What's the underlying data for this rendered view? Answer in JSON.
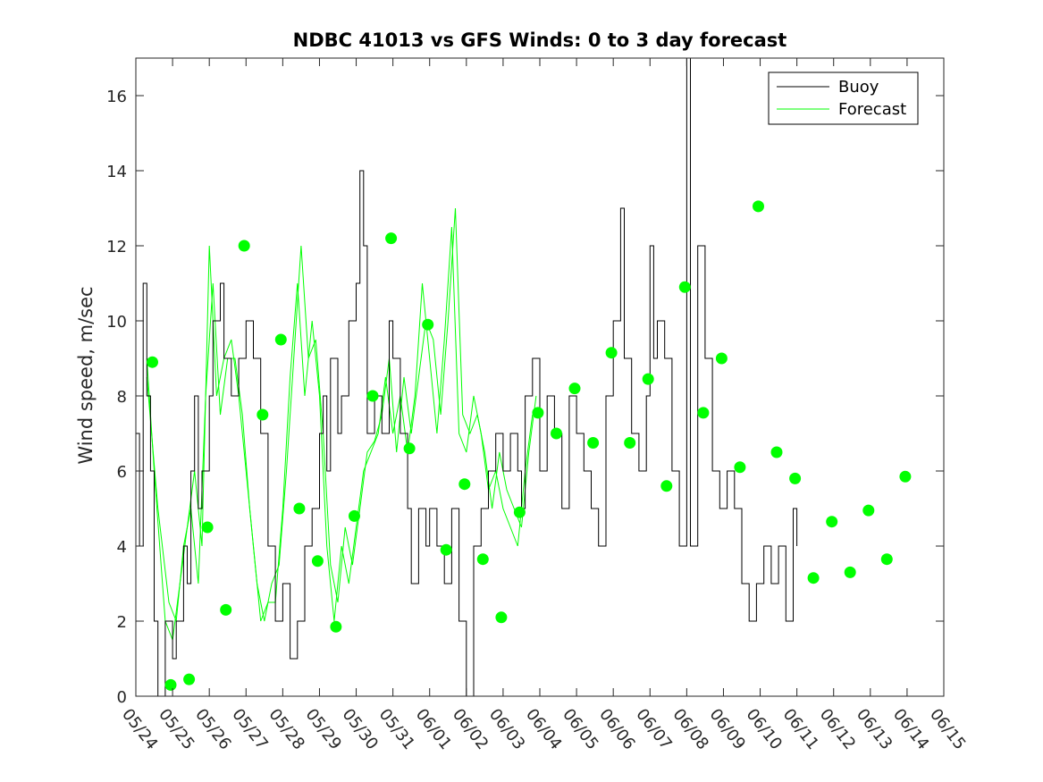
{
  "chart_data": {
    "type": "line",
    "title": "NDBC 41013 vs GFS Winds: 0 to 3 day forecast",
    "xlabel": "",
    "ylabel": "Wind speed, m/sec",
    "ylim": [
      0,
      17
    ],
    "yticks": [
      0,
      2,
      4,
      6,
      8,
      10,
      12,
      14,
      16
    ],
    "xlim": [
      0,
      22
    ],
    "x_tick_labels": [
      "05/24",
      "05/25",
      "05/26",
      "05/27",
      "05/28",
      "05/29",
      "05/30",
      "05/31",
      "06/01",
      "06/02",
      "06/03",
      "06/04",
      "06/05",
      "06/06",
      "06/07",
      "06/08",
      "06/09",
      "06/10",
      "06/11",
      "06/12",
      "06/13",
      "06/14",
      "06/15"
    ],
    "legend": {
      "location": "top-right",
      "entries": [
        "Buoy",
        "Forecast"
      ]
    },
    "colors": {
      "buoy": "#000000",
      "forecast": "#00ff00",
      "markers": "#00ff00"
    },
    "series": [
      {
        "name": "Buoy",
        "points": [
          [
            0,
            7
          ],
          [
            0.1,
            4
          ],
          [
            0.2,
            11
          ],
          [
            0.3,
            8
          ],
          [
            0.4,
            6
          ],
          [
            0.5,
            2
          ],
          [
            0.6,
            0
          ],
          [
            0.8,
            2
          ],
          [
            1.0,
            1
          ],
          [
            1.1,
            2
          ],
          [
            1.3,
            4
          ],
          [
            1.4,
            3
          ],
          [
            1.5,
            6
          ],
          [
            1.6,
            8
          ],
          [
            1.7,
            5
          ],
          [
            1.8,
            6
          ],
          [
            2.0,
            8
          ],
          [
            2.1,
            10
          ],
          [
            2.3,
            11
          ],
          [
            2.4,
            9
          ],
          [
            2.6,
            8
          ],
          [
            2.8,
            9
          ],
          [
            3.0,
            10
          ],
          [
            3.2,
            9
          ],
          [
            3.4,
            7
          ],
          [
            3.6,
            4
          ],
          [
            3.8,
            2
          ],
          [
            4.0,
            3
          ],
          [
            4.2,
            1
          ],
          [
            4.4,
            2
          ],
          [
            4.6,
            4
          ],
          [
            4.8,
            5
          ],
          [
            5.0,
            7
          ],
          [
            5.1,
            8
          ],
          [
            5.2,
            6
          ],
          [
            5.3,
            9
          ],
          [
            5.5,
            7
          ],
          [
            5.6,
            8
          ],
          [
            5.8,
            10
          ],
          [
            6.0,
            11
          ],
          [
            6.1,
            14
          ],
          [
            6.2,
            12
          ],
          [
            6.3,
            7
          ],
          [
            6.5,
            8
          ],
          [
            6.7,
            7
          ],
          [
            6.9,
            10
          ],
          [
            7.0,
            9
          ],
          [
            7.2,
            7
          ],
          [
            7.4,
            5
          ],
          [
            7.5,
            3
          ],
          [
            7.7,
            5
          ],
          [
            7.9,
            4
          ],
          [
            8.0,
            5
          ],
          [
            8.2,
            4
          ],
          [
            8.4,
            3
          ],
          [
            8.6,
            5
          ],
          [
            8.8,
            2
          ],
          [
            9.0,
            0
          ],
          [
            9.2,
            4
          ],
          [
            9.4,
            5
          ],
          [
            9.6,
            6
          ],
          [
            9.8,
            7
          ],
          [
            10.0,
            6
          ],
          [
            10.2,
            7
          ],
          [
            10.4,
            6
          ],
          [
            10.5,
            5
          ],
          [
            10.6,
            8
          ],
          [
            10.8,
            9
          ],
          [
            11.0,
            6
          ],
          [
            11.2,
            8
          ],
          [
            11.4,
            7
          ],
          [
            11.6,
            5
          ],
          [
            11.8,
            8
          ],
          [
            12.0,
            7
          ],
          [
            12.2,
            6
          ],
          [
            12.4,
            5
          ],
          [
            12.6,
            4
          ],
          [
            12.8,
            8
          ],
          [
            13.0,
            10
          ],
          [
            13.2,
            13
          ],
          [
            13.3,
            9
          ],
          [
            13.5,
            7
          ],
          [
            13.7,
            6
          ],
          [
            13.9,
            8
          ],
          [
            14.0,
            12
          ],
          [
            14.1,
            9
          ],
          [
            14.2,
            10
          ],
          [
            14.4,
            9
          ],
          [
            14.6,
            6
          ],
          [
            14.8,
            4
          ],
          [
            15.0,
            17
          ],
          [
            15.1,
            4
          ],
          [
            15.3,
            12
          ],
          [
            15.5,
            9
          ],
          [
            15.7,
            6
          ],
          [
            15.9,
            5
          ],
          [
            16.1,
            6
          ],
          [
            16.3,
            5
          ],
          [
            16.5,
            3
          ],
          [
            16.7,
            2
          ],
          [
            16.9,
            3
          ],
          [
            17.1,
            4
          ],
          [
            17.3,
            3
          ],
          [
            17.5,
            4
          ],
          [
            17.7,
            2
          ],
          [
            17.9,
            5
          ],
          [
            18.0,
            4
          ]
        ]
      },
      {
        "name": "Forecast",
        "runs": [
          [
            [
              0.3,
              9
            ],
            [
              0.5,
              6
            ],
            [
              0.8,
              2
            ],
            [
              1.0,
              1.5
            ],
            [
              1.2,
              3
            ],
            [
              1.4,
              4.5
            ],
            [
              1.6,
              6
            ],
            [
              1.8,
              4
            ],
            [
              2.0,
              12
            ],
            [
              2.2,
              8
            ],
            [
              2.4,
              9
            ],
            [
              2.6,
              9.5
            ],
            [
              2.8,
              8
            ],
            [
              3.0,
              6
            ],
            [
              3.2,
              4
            ],
            [
              3.4,
              2
            ],
            [
              3.6,
              2.5
            ],
            [
              3.8,
              2.5
            ],
            [
              4.0,
              5
            ],
            [
              4.2,
              8.5
            ],
            [
              4.4,
              11
            ],
            [
              4.6,
              8
            ],
            [
              4.8,
              10
            ],
            [
              5.0,
              8
            ],
            [
              5.2,
              4
            ],
            [
              5.4,
              2
            ],
            [
              5.6,
              4
            ],
            [
              5.8,
              3
            ],
            [
              6.0,
              4.5
            ],
            [
              6.2,
              6
            ],
            [
              6.4,
              6.5
            ],
            [
              6.6,
              7
            ],
            [
              6.8,
              8.5
            ],
            [
              7.0,
              7
            ],
            [
              7.2,
              8
            ],
            [
              7.4,
              6.5
            ],
            [
              7.6,
              8
            ],
            [
              7.8,
              11
            ],
            [
              8.0,
              9
            ],
            [
              8.2,
              7
            ],
            [
              8.4,
              9.5
            ],
            [
              8.6,
              12.5
            ],
            [
              8.8,
              7
            ],
            [
              9.0,
              6.5
            ],
            [
              9.2,
              8
            ],
            [
              9.4,
              7
            ],
            [
              9.6,
              5.5
            ],
            [
              9.8,
              6
            ],
            [
              10.0,
              5
            ],
            [
              10.2,
              4.5
            ],
            [
              10.4,
              4
            ],
            [
              10.6,
              6
            ],
            [
              10.8,
              7.5
            ]
          ],
          [
            [
              0.3,
              8.5
            ],
            [
              0.6,
              5
            ],
            [
              0.9,
              2.5
            ],
            [
              1.1,
              2
            ],
            [
              1.3,
              4
            ],
            [
              1.5,
              5
            ],
            [
              1.7,
              3
            ],
            [
              1.9,
              8
            ],
            [
              2.1,
              11
            ],
            [
              2.3,
              7.5
            ],
            [
              2.5,
              9
            ],
            [
              2.7,
              9
            ],
            [
              2.9,
              7.5
            ],
            [
              3.1,
              5
            ],
            [
              3.3,
              3
            ],
            [
              3.5,
              2
            ],
            [
              3.7,
              3
            ],
            [
              3.9,
              3.5
            ],
            [
              4.1,
              6
            ],
            [
              4.3,
              9
            ],
            [
              4.5,
              12
            ],
            [
              4.7,
              9
            ],
            [
              4.9,
              9.5
            ],
            [
              5.1,
              7
            ],
            [
              5.3,
              3.5
            ],
            [
              5.5,
              2.5
            ],
            [
              5.7,
              4.5
            ],
            [
              5.9,
              3.5
            ],
            [
              6.1,
              5
            ],
            [
              6.3,
              6.5
            ],
            [
              6.5,
              6.8
            ],
            [
              6.7,
              7.5
            ],
            [
              6.9,
              9
            ],
            [
              7.1,
              6.5
            ],
            [
              7.3,
              8.5
            ],
            [
              7.5,
              7
            ],
            [
              7.7,
              8.5
            ],
            [
              7.9,
              10
            ],
            [
              8.1,
              9.5
            ],
            [
              8.3,
              7.5
            ],
            [
              8.5,
              10
            ],
            [
              8.7,
              13
            ],
            [
              8.9,
              7.5
            ],
            [
              9.1,
              7
            ],
            [
              9.3,
              7.5
            ],
            [
              9.5,
              6.5
            ],
            [
              9.7,
              5
            ],
            [
              9.9,
              6.5
            ],
            [
              10.1,
              5.5
            ],
            [
              10.3,
              5
            ],
            [
              10.5,
              4.5
            ],
            [
              10.7,
              6.5
            ],
            [
              10.9,
              8
            ]
          ]
        ]
      }
    ],
    "daily_markers": [
      [
        0.45,
        8.9
      ],
      [
        0.95,
        0.3
      ],
      [
        1.45,
        0.45
      ],
      [
        1.95,
        4.5
      ],
      [
        2.45,
        2.3
      ],
      [
        2.95,
        12
      ],
      [
        3.45,
        7.5
      ],
      [
        3.95,
        9.5
      ],
      [
        4.45,
        5
      ],
      [
        4.95,
        3.6
      ],
      [
        5.45,
        1.85
      ],
      [
        5.95,
        4.8
      ],
      [
        6.45,
        8
      ],
      [
        6.95,
        12.2
      ],
      [
        7.45,
        6.6
      ],
      [
        7.95,
        9.9
      ],
      [
        8.45,
        3.9
      ],
      [
        8.95,
        5.65
      ],
      [
        9.45,
        3.65
      ],
      [
        9.95,
        2.1
      ],
      [
        10.45,
        4.9
      ],
      [
        10.95,
        7.55
      ],
      [
        11.45,
        7
      ],
      [
        11.95,
        8.2
      ],
      [
        12.45,
        6.75
      ],
      [
        12.95,
        9.15
      ],
      [
        13.45,
        6.75
      ],
      [
        13.95,
        8.45
      ],
      [
        14.45,
        5.6
      ],
      [
        14.95,
        10.9
      ],
      [
        15.45,
        7.55
      ],
      [
        15.95,
        9
      ],
      [
        16.45,
        6.1
      ],
      [
        16.95,
        13.05
      ],
      [
        17.45,
        6.5
      ],
      [
        17.95,
        5.8
      ],
      [
        18.45,
        3.15
      ],
      [
        18.95,
        4.65
      ],
      [
        19.45,
        3.3
      ],
      [
        19.95,
        4.95
      ],
      [
        20.45,
        3.65
      ],
      [
        20.95,
        5.85
      ]
    ]
  }
}
